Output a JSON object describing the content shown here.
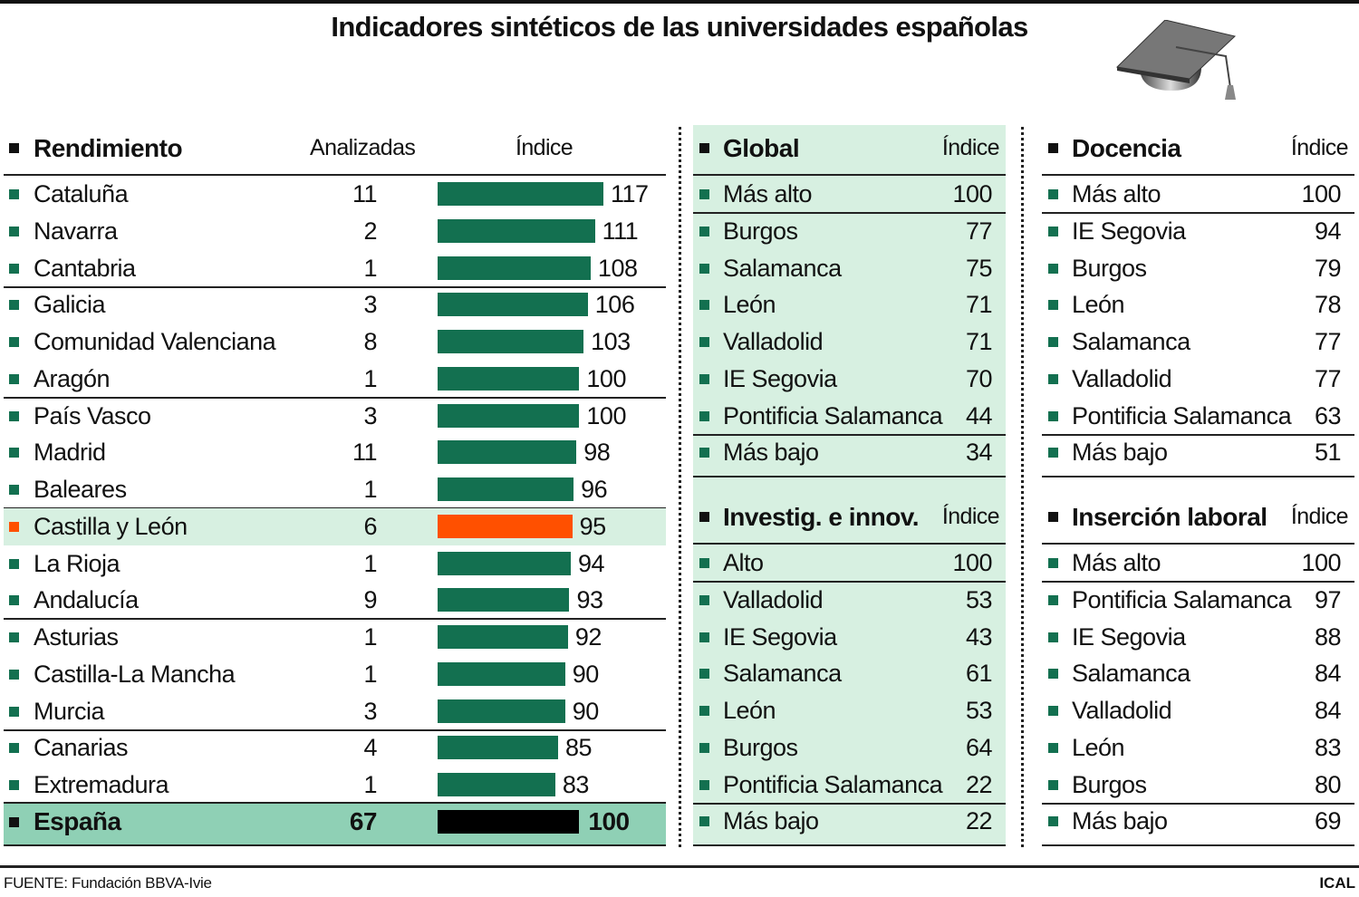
{
  "title": "Indicadores sintéticos de las universidades españolas",
  "colors": {
    "bar": "#137050",
    "highlight_bar": "#ff5000",
    "total_bar": "#000000",
    "panel_bg": "#d7f0e1",
    "highlight_row_bg": "#d7f0e1",
    "total_row_bg": "#8fd0b5"
  },
  "icons": {
    "header": "graduation-cap-icon"
  },
  "chart_data": {
    "type": "bar",
    "title": "Rendimiento",
    "columns": [
      "Analizadas",
      "Índice"
    ],
    "categories": [
      "Cataluña",
      "Navarra",
      "Cantabria",
      "Galicia",
      "Comunidad Valenciana",
      "Aragón",
      "País Vasco",
      "Madrid",
      "Baleares",
      "Castilla y León",
      "La Rioja",
      "Andalucía",
      "Asturias",
      "Castilla-La Mancha",
      "Murcia",
      "Canarias",
      "Extremadura"
    ],
    "analizadas": [
      11,
      2,
      1,
      3,
      8,
      1,
      3,
      11,
      1,
      6,
      1,
      9,
      1,
      1,
      3,
      4,
      1
    ],
    "values": [
      117,
      111,
      108,
      106,
      103,
      100,
      100,
      98,
      96,
      95,
      94,
      93,
      92,
      90,
      90,
      85,
      83
    ],
    "highlight": "Castilla y León",
    "total": {
      "label": "España",
      "analizadas": 67,
      "value": 100
    }
  },
  "tables": [
    {
      "title": "Global",
      "col": "Índice",
      "rows": [
        [
          "Más alto",
          "100"
        ],
        [
          "Burgos",
          "77"
        ],
        [
          "Salamanca",
          "75"
        ],
        [
          "León",
          "71"
        ],
        [
          "Valladolid",
          "71"
        ],
        [
          "IE Segovia",
          "70"
        ],
        [
          "Pontificia Salamanca",
          "44"
        ],
        [
          "Más bajo",
          "34"
        ]
      ]
    },
    {
      "title": "Investig. e innov.",
      "col": "Índice",
      "rows": [
        [
          "Alto",
          "100"
        ],
        [
          "Valladolid",
          "53"
        ],
        [
          "IE Segovia",
          "43"
        ],
        [
          "Salamanca",
          "61"
        ],
        [
          "León",
          "53"
        ],
        [
          "Burgos",
          "64"
        ],
        [
          "Pontificia Salamanca",
          "22"
        ],
        [
          "Más bajo",
          "22"
        ]
      ]
    },
    {
      "title": "Docencia",
      "col": "Índice",
      "rows": [
        [
          "Más alto",
          "100"
        ],
        [
          "IE Segovia",
          "94"
        ],
        [
          "Burgos",
          "79"
        ],
        [
          "León",
          "78"
        ],
        [
          "Salamanca",
          "77"
        ],
        [
          "Valladolid",
          "77"
        ],
        [
          "Pontificia Salamanca",
          "63"
        ],
        [
          "Más bajo",
          "51"
        ]
      ]
    },
    {
      "title": "Inserción laboral",
      "col": "Índice",
      "rows": [
        [
          "Más alto",
          "100"
        ],
        [
          "Pontificia Salamanca",
          "97"
        ],
        [
          "IE Segovia",
          "88"
        ],
        [
          "Salamanca",
          "84"
        ],
        [
          "Valladolid",
          "84"
        ],
        [
          "León",
          "83"
        ],
        [
          "Burgos",
          "80"
        ],
        [
          "Más bajo",
          "69"
        ]
      ]
    }
  ],
  "footer": {
    "source": "FUENTE: Fundación BBVA-Ivie",
    "credit": "ICAL"
  }
}
